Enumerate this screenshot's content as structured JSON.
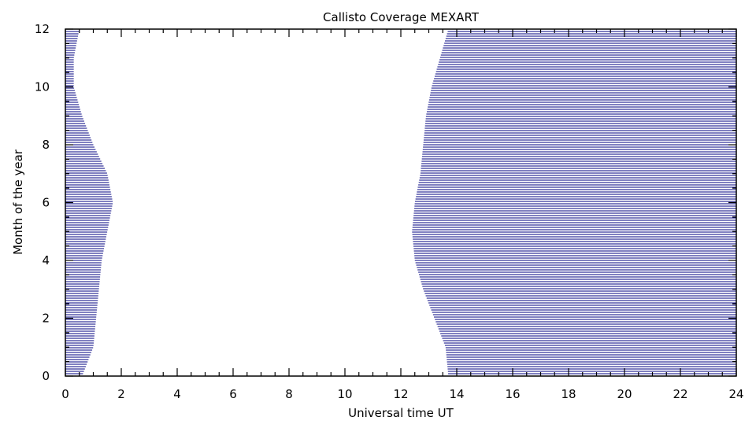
{
  "chart_data": {
    "type": "area",
    "title": "Callisto Coverage MEXART",
    "xlabel": "Universal time UT",
    "ylabel": "Month of the year",
    "xlim": [
      0,
      24
    ],
    "ylim": [
      0,
      12
    ],
    "x_ticks": [
      0,
      2,
      4,
      6,
      8,
      10,
      12,
      14,
      16,
      18,
      20,
      22,
      24
    ],
    "y_ticks": [
      0,
      2,
      4,
      6,
      8,
      10,
      12
    ],
    "grid": false,
    "fill_color": "#000080",
    "fill_pattern": "horizontal-lines",
    "series": [
      {
        "values_description_month": [
          0,
          1,
          2,
          3,
          4,
          5,
          6,
          7,
          8,
          9,
          10,
          11,
          12
        ],
        "left_band_end_ut": [
          0.6,
          1.0,
          1.1,
          1.2,
          1.3,
          1.5,
          1.7,
          1.5,
          1.0,
          0.6,
          0.3,
          0.3,
          0.5
        ],
        "right_band_start_ut": [
          13.7,
          13.6,
          13.2,
          12.8,
          12.5,
          12.4,
          12.5,
          12.7,
          12.8,
          12.9,
          13.1,
          13.4,
          13.7
        ]
      }
    ]
  }
}
